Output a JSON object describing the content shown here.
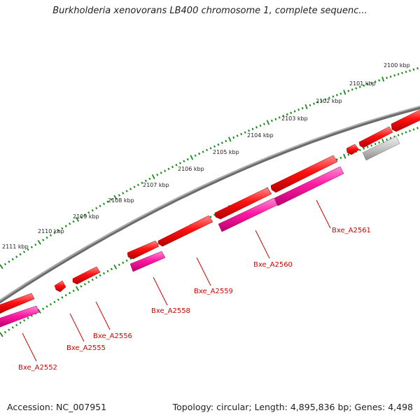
{
  "title": "Burkholderia xenovorans LB400 chromosome 1, complete sequenc...",
  "footer": {
    "accession": "Accession: NC_007951",
    "summary": "Topology: circular; Length: 4,895,836 bp; Genes: 4,498"
  },
  "scale": {
    "unit": "kbp",
    "ticks": [
      "2100 kbp",
      "2101 kbp",
      "2102 kbp",
      "2103 kbp",
      "2104 kbp",
      "2105 kbp",
      "2106 kbp",
      "2107 kbp",
      "2108 kbp",
      "2109 kbp",
      "2110 kbp",
      "2111 kbp"
    ]
  },
  "gene_labels": [
    "Bxe_A2552",
    "Bxe_A2555",
    "Bxe_A2556",
    "Bxe_A2558",
    "Bxe_A2559",
    "Bxe_A2560",
    "Bxe_A2561"
  ],
  "colors": {
    "backbone": "#8a8a8a",
    "gene": "#ff0000",
    "cds": "#ff1aa3",
    "rna": "#bdbdbd",
    "ticks": "#1a8a1a",
    "label": "#d40000"
  }
}
